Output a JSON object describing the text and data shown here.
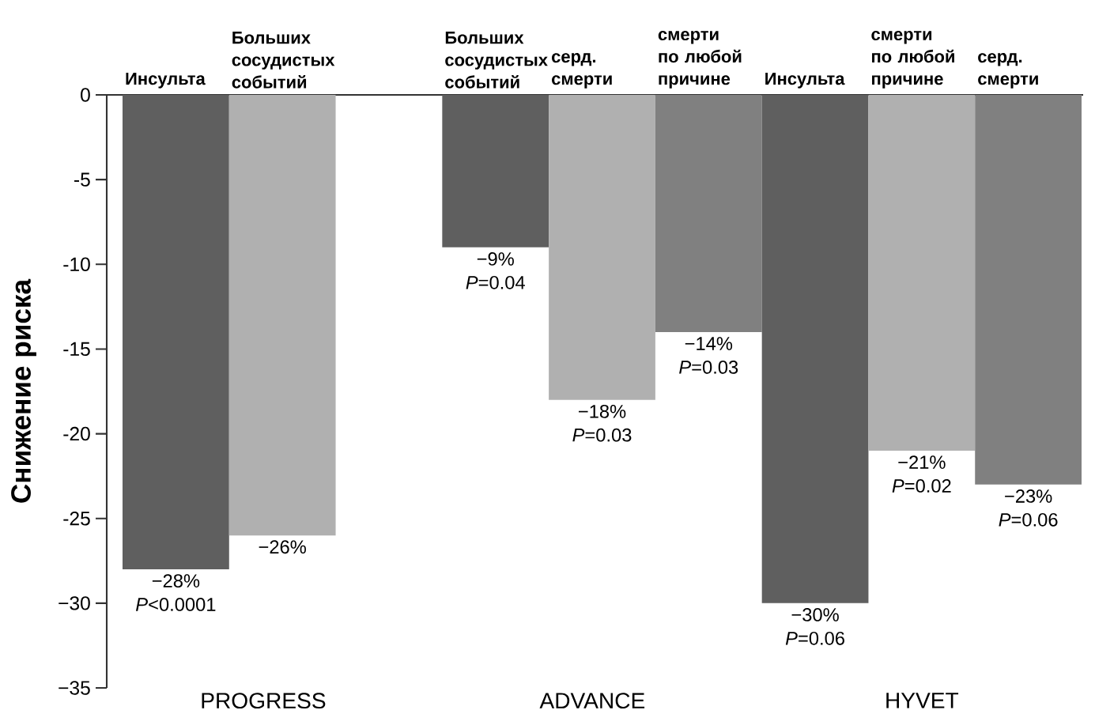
{
  "chart_data": {
    "type": "bar",
    "ylabel": "Снижение риска",
    "categories": [
      "Инсульта",
      "Больших сосудистых событий",
      null,
      "Больших сосудистых событий",
      "серд. смерти",
      "смерти по любой причине",
      "Инсульта",
      "смерти по любой причине",
      "серд. смерти"
    ],
    "values": [
      -28,
      -26,
      null,
      -9,
      -18,
      -14,
      -30,
      -21,
      -23
    ],
    "colors": [
      "#5f5f5f",
      "#b0b0b0",
      null,
      "#5f5f5f",
      "#b0b0b0",
      "#808080",
      "#5f5f5f",
      "#b0b0b0",
      "#808080"
    ],
    "value_labels": [
      "−28% *P*<0.0001",
      "−26%",
      null,
      "−9% *P*=0.04",
      "−18% *P*=0.03",
      "−14% *P*=0.03",
      "−30% *P*=0.06",
      "−21% *P*=0.02",
      "−23% *P*=0.06"
    ],
    "ylim": [
      -35,
      0
    ],
    "yticks": [
      {
        "value": -35,
        "label": "−35"
      },
      {
        "value": -30,
        "label": "−30"
      },
      -25,
      -20,
      -15,
      -10,
      -5,
      0
    ],
    "annotations": [
      "PROGRESS",
      "ADVANCE",
      "HYVET"
    ]
  }
}
